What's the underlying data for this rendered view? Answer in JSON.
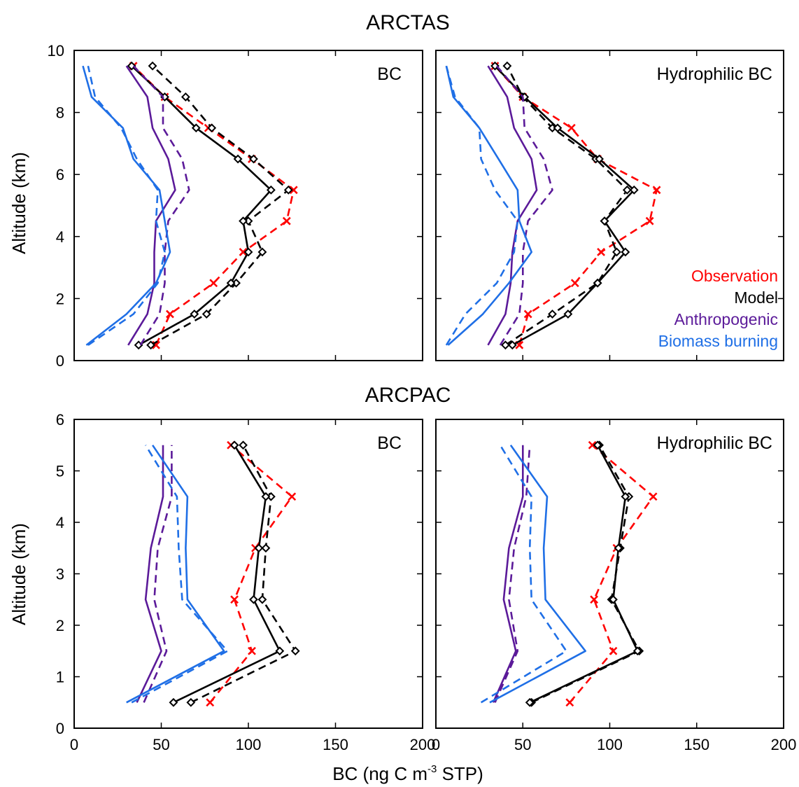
{
  "figure": {
    "xlabel": {
      "pre": "BC (ng C m",
      "sup": "-3",
      "post": " STP)"
    }
  },
  "colors": {
    "Observation": "#ff0000",
    "Model": "#000000",
    "Anthropogenic": "#5b1a99",
    "Biomass burning": "#1f6fe6"
  },
  "legend": [
    {
      "name": "Observation",
      "color": "#ff0000"
    },
    {
      "name": "Model",
      "color": "#000000"
    },
    {
      "name": "Anthropogenic",
      "color": "#5b1a99"
    },
    {
      "name": "Biomass burning",
      "color": "#1f6fe6"
    }
  ],
  "chart_data": [
    {
      "type": "line",
      "group": "ARCTAS",
      "panel_label": "BC",
      "ylabel": "Altitude (km)",
      "xlim": [
        0,
        200
      ],
      "ylim": [
        0,
        10
      ],
      "xticks": [
        0,
        50,
        100,
        150,
        200
      ],
      "yticks": [
        0,
        2,
        4,
        6,
        8,
        10
      ],
      "y": [
        0.5,
        1.5,
        2.5,
        3.5,
        4.5,
        5.5,
        6.5,
        7.5,
        8.5,
        9.5
      ],
      "series": [
        {
          "name": "Observation",
          "style": "dashed",
          "marker": "x",
          "x": [
            47,
            55,
            80,
            97,
            122,
            126,
            102,
            77,
            52,
            34
          ]
        },
        {
          "name": "Model",
          "style": "dashed",
          "marker": "diamond",
          "x": [
            44,
            76,
            93,
            108,
            100,
            123,
            103,
            79,
            64,
            45
          ]
        },
        {
          "name": "Model",
          "style": "solid",
          "marker": "diamond",
          "x": [
            37,
            69,
            90,
            100,
            97,
            113,
            94,
            70,
            52,
            33
          ]
        },
        {
          "name": "Anthropogenic",
          "style": "dashed",
          "marker": "none",
          "x": [
            38,
            49,
            52,
            52,
            54,
            66,
            62,
            51,
            51,
            34
          ]
        },
        {
          "name": "Anthropogenic",
          "style": "solid",
          "marker": "none",
          "x": [
            31,
            42,
            46,
            46,
            47,
            58,
            54,
            45,
            42,
            30
          ]
        },
        {
          "name": "Biomass burning",
          "style": "dashed",
          "marker": "none",
          "x": [
            8,
            34,
            48,
            52,
            47,
            48,
            36,
            27,
            12,
            8
          ]
        },
        {
          "name": "Biomass burning",
          "style": "solid",
          "marker": "none",
          "x": [
            7,
            30,
            47,
            55,
            52,
            49,
            34,
            28,
            10,
            5
          ]
        }
      ]
    },
    {
      "type": "line",
      "group": "ARCTAS",
      "panel_label": "Hydrophilic BC",
      "xlim": [
        0,
        200
      ],
      "ylim": [
        0,
        10
      ],
      "xticks": [
        0,
        50,
        100,
        150,
        200
      ],
      "yticks": [
        0,
        2,
        4,
        6,
        8,
        10
      ],
      "y": [
        0.5,
        1.5,
        2.5,
        3.5,
        4.5,
        5.5,
        6.5,
        7.5,
        8.5,
        9.5
      ],
      "series": [
        {
          "name": "Observation",
          "style": "dashed",
          "marker": "x",
          "x": [
            48,
            53,
            80,
            95,
            123,
            127,
            93,
            78,
            50,
            34
          ]
        },
        {
          "name": "Model",
          "style": "dashed",
          "marker": "diamond",
          "x": [
            40,
            67,
            93,
            104,
            97,
            110,
            92,
            67,
            50,
            41
          ]
        },
        {
          "name": "Model",
          "style": "solid",
          "marker": "diamond",
          "x": [
            44,
            76,
            93,
            109,
            97,
            114,
            94,
            70,
            51,
            34
          ]
        },
        {
          "name": "Anthropogenic",
          "style": "dashed",
          "marker": "none",
          "x": [
            37,
            48,
            50,
            50,
            53,
            67,
            62,
            51,
            50,
            35
          ]
        },
        {
          "name": "Anthropogenic",
          "style": "solid",
          "marker": "none",
          "x": [
            30,
            40,
            43,
            44,
            47,
            58,
            55,
            45,
            41,
            30
          ]
        },
        {
          "name": "Biomass burning",
          "style": "dashed",
          "marker": "none",
          "x": [
            6,
            17,
            35,
            45,
            47,
            34,
            26,
            25,
            11,
            6
          ]
        },
        {
          "name": "Biomass burning",
          "style": "solid",
          "marker": "none",
          "x": [
            7,
            27,
            42,
            55,
            48,
            47,
            36,
            25,
            10,
            6
          ]
        }
      ]
    },
    {
      "type": "line",
      "group": "ARCPAC",
      "panel_label": "BC",
      "ylabel": "Altitude (km)",
      "xlim": [
        0,
        200
      ],
      "ylim": [
        0,
        6
      ],
      "xticks": [
        0,
        50,
        100,
        150,
        200
      ],
      "yticks": [
        0,
        1,
        2,
        3,
        4,
        5,
        6
      ],
      "y": [
        0.5,
        1.5,
        2.5,
        3.5,
        4.5,
        5.5
      ],
      "series": [
        {
          "name": "Observation",
          "style": "dashed",
          "marker": "x",
          "x": [
            78,
            102,
            92,
            104,
            125,
            90
          ]
        },
        {
          "name": "Model",
          "style": "dashed",
          "marker": "diamond",
          "x": [
            67,
            127,
            108,
            110,
            113,
            97
          ]
        },
        {
          "name": "Model",
          "style": "solid",
          "marker": "diamond",
          "x": [
            57,
            118,
            103,
            106,
            110,
            92
          ]
        },
        {
          "name": "Anthropogenic",
          "style": "dashed",
          "marker": "none",
          "x": [
            40,
            53,
            46,
            48,
            56,
            56
          ]
        },
        {
          "name": "Anthropogenic",
          "style": "solid",
          "marker": "none",
          "x": [
            36,
            50,
            41,
            44,
            51,
            51
          ]
        },
        {
          "name": "Biomass burning",
          "style": "dashed",
          "marker": "none",
          "x": [
            33,
            88,
            62,
            60,
            59,
            41
          ]
        },
        {
          "name": "Biomass burning",
          "style": "solid",
          "marker": "none",
          "x": [
            30,
            86,
            65,
            64,
            65,
            45
          ]
        }
      ]
    },
    {
      "type": "line",
      "group": "ARCPAC",
      "panel_label": "Hydrophilic BC",
      "xlim": [
        0,
        200
      ],
      "ylim": [
        0,
        6
      ],
      "xticks": [
        0,
        50,
        100,
        150,
        200
      ],
      "yticks": [
        0,
        1,
        2,
        3,
        4,
        5,
        6
      ],
      "y": [
        0.5,
        1.5,
        2.5,
        3.5,
        4.5,
        5.5
      ],
      "series": [
        {
          "name": "Observation",
          "style": "dashed",
          "marker": "x",
          "x": [
            77,
            102,
            91,
            104,
            125,
            90
          ]
        },
        {
          "name": "Model",
          "style": "dashed",
          "marker": "diamond",
          "x": [
            55,
            117,
            101,
            106,
            111,
            94
          ]
        },
        {
          "name": "Model",
          "style": "solid",
          "marker": "diamond",
          "x": [
            54,
            116,
            102,
            105,
            109,
            93
          ]
        },
        {
          "name": "Anthropogenic",
          "style": "dashed",
          "marker": "none",
          "x": [
            34,
            47,
            42,
            45,
            52,
            54
          ]
        },
        {
          "name": "Anthropogenic",
          "style": "solid",
          "marker": "none",
          "x": [
            33,
            46,
            39,
            42,
            50,
            50
          ]
        },
        {
          "name": "Biomass burning",
          "style": "dashed",
          "marker": "none",
          "x": [
            26,
            75,
            55,
            54,
            55,
            37
          ]
        },
        {
          "name": "Biomass burning",
          "style": "solid",
          "marker": "none",
          "x": [
            31,
            86,
            63,
            62,
            64,
            43
          ]
        }
      ]
    }
  ]
}
